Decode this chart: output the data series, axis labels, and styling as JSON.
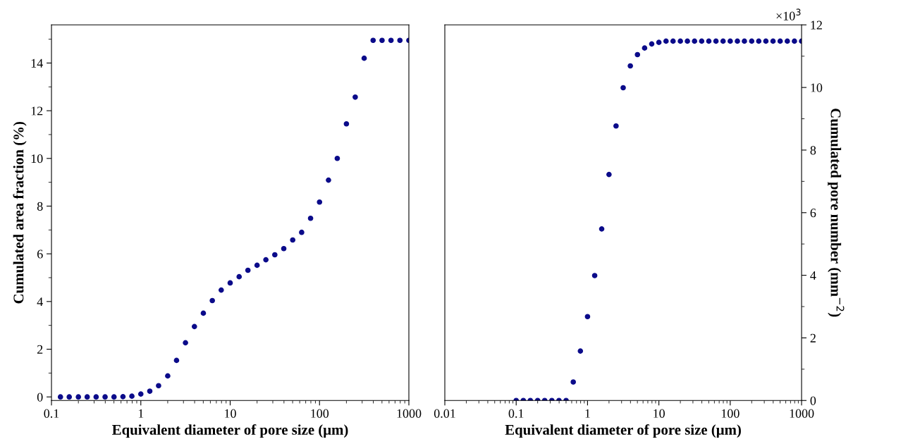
{
  "chart_data": [
    {
      "type": "scatter",
      "xlabel": "Equivalent diameter of pore size (μm)",
      "ylabel": "Cumulated area fraction (%)",
      "log": "x",
      "xlim": [
        0.1,
        1000
      ],
      "xticks": [
        0.1,
        1,
        10,
        100,
        1000
      ],
      "ylim": [
        -0.15,
        15.6
      ],
      "yticks": [
        0,
        2,
        4,
        6,
        8,
        10,
        12,
        14
      ],
      "marker": "circle",
      "grid": false,
      "tick_labels": "xy",
      "series": [
        {
          "color": "#0b0b8a",
          "x": [
            0.126,
            0.158,
            0.2,
            0.251,
            0.316,
            0.398,
            0.501,
            0.631,
            0.794,
            1,
            1.26,
            1.58,
            2,
            2.51,
            3.16,
            3.98,
            5.01,
            6.31,
            7.94,
            10,
            12.6,
            15.8,
            20,
            25.1,
            31.6,
            39.8,
            50.1,
            63.1,
            79.4,
            100,
            126,
            158,
            200,
            251,
            316,
            398,
            501,
            631,
            794,
            1000
          ],
          "values": [
            0,
            0,
            0,
            0,
            0,
            0,
            0,
            0.01,
            0.03,
            0.12,
            0.24,
            0.47,
            0.88,
            1.53,
            2.27,
            2.95,
            3.51,
            4.04,
            4.48,
            4.78,
            5.04,
            5.31,
            5.52,
            5.75,
            5.96,
            6.22,
            6.58,
            6.9,
            7.49,
            8.17,
            9.09,
            10.0,
            11.45,
            12.57,
            14.2,
            14.95,
            14.95,
            14.95,
            14.95,
            14.95
          ]
        }
      ]
    },
    {
      "type": "scatter",
      "xlabel": "Equivalent diameter of pore size (μm)",
      "y2label": "Cumulated pore number (mm$^{−2}$)",
      "log": "x",
      "xlim": [
        0.01,
        1000
      ],
      "xticks": [
        0.01,
        0.1,
        1,
        10,
        100,
        1000
      ],
      "y2lim": [
        0,
        12
      ],
      "y2ticks": [
        0,
        2,
        4,
        6,
        8,
        10,
        12
      ],
      "marker": "circle",
      "grid": false,
      "annotations": [
        "×10$^{3}$"
      ],
      "series": [
        {
          "color": "#0b0b8a",
          "axis": "y2",
          "x": [
            0.1,
            0.126,
            0.158,
            0.2,
            0.251,
            0.316,
            0.398,
            0.501,
            0.631,
            0.794,
            1,
            1.26,
            1.58,
            2,
            2.51,
            3.16,
            3.98,
            5.01,
            6.31,
            7.94,
            10,
            12.6,
            15.8,
            20,
            25.1,
            31.6,
            39.8,
            50.1,
            63.1,
            79.4,
            100,
            126,
            158,
            200,
            251,
            316,
            398,
            501,
            631,
            794,
            1000
          ],
          "values": [
            0,
            0,
            0,
            0,
            0,
            0,
            0,
            0,
            0.59,
            1.58,
            2.68,
            3.99,
            5.48,
            7.22,
            8.77,
            9.99,
            10.69,
            11.05,
            11.26,
            11.39,
            11.44,
            11.48,
            11.48,
            11.48,
            11.48,
            11.48,
            11.48,
            11.48,
            11.48,
            11.48,
            11.48,
            11.48,
            11.48,
            11.48,
            11.48,
            11.48,
            11.48,
            11.48,
            11.48,
            11.48,
            11.48
          ]
        }
      ]
    }
  ]
}
